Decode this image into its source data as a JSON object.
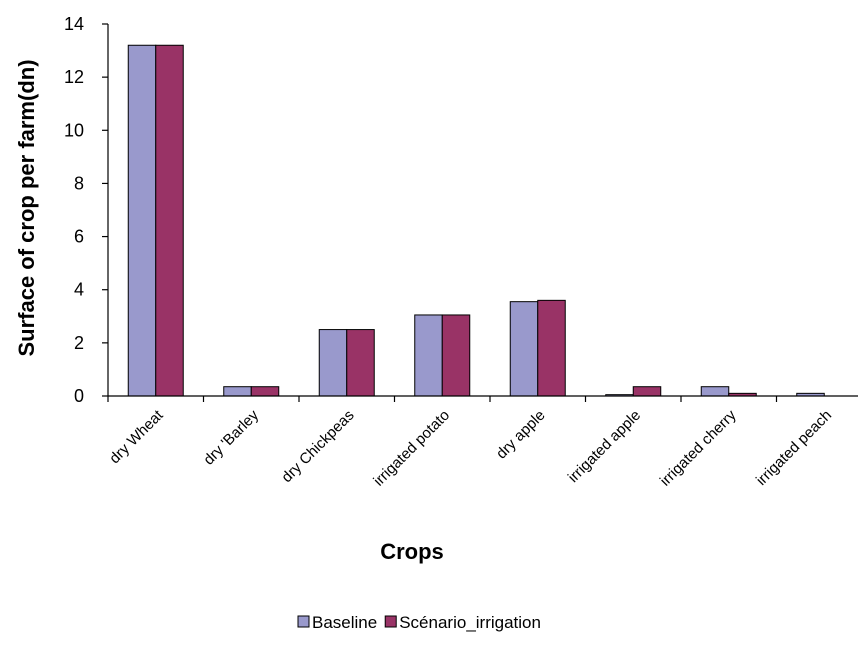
{
  "chart_data": {
    "type": "bar",
    "categories": [
      "dry Wheat",
      "dry 'Barley",
      "dry Chickpeas",
      "irrigated potato",
      "dry apple",
      "irrigated apple",
      "irrigated cherry",
      "irrigated peach"
    ],
    "series": [
      {
        "name": "Baseline",
        "color": "#9999CC",
        "values": [
          13.2,
          0.35,
          2.5,
          3.05,
          3.55,
          0.05,
          0.35,
          0.1
        ]
      },
      {
        "name": "Scénario_irrigation",
        "color": "#993366",
        "values": [
          13.2,
          0.35,
          2.5,
          3.05,
          3.6,
          0.35,
          0.1,
          0.0
        ]
      }
    ],
    "title": "",
    "xlabel": "Crops",
    "ylabel": "Surface of crop per farm(dn)",
    "ylim": [
      0,
      14
    ],
    "yticks": [
      0,
      2,
      4,
      6,
      8,
      10,
      12,
      14
    ],
    "grid": false,
    "legend_position": "bottom"
  }
}
